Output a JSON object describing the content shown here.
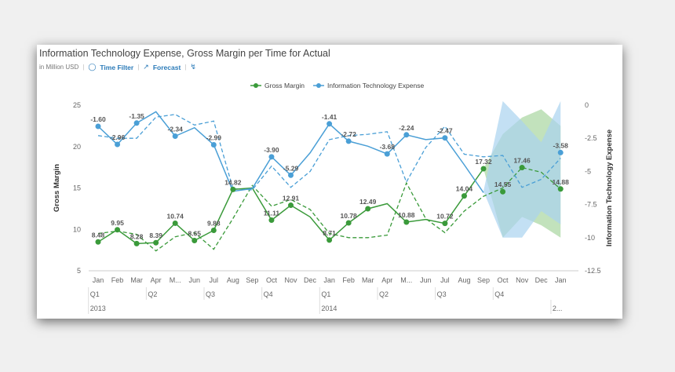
{
  "header": {
    "title": "Information Technology Expense, Gross Margin per Time for Actual",
    "unit": "in Million USD",
    "time_filter_label": "Time Filter",
    "forecast_label": "Forecast"
  },
  "colors": {
    "gross_margin": "#3a9a3a",
    "it_expense": "#4a9fd6",
    "gm_band": "#a8d6a0",
    "it_band": "#a9d3f0"
  },
  "chart_data": {
    "type": "line",
    "legend_position": "top-center",
    "categories": [
      "Jan",
      "Feb",
      "Mar",
      "Apr",
      "M...",
      "Jun",
      "Jul",
      "Aug",
      "Sep",
      "Oct",
      "Nov",
      "Dec",
      "Jan",
      "Feb",
      "Mar",
      "Apr",
      "M...",
      "Jun",
      "Jul",
      "Aug",
      "Sep",
      "Oct",
      "Nov",
      "Dec",
      "Jan"
    ],
    "quarters": [
      {
        "label": "Q1",
        "start": 0
      },
      {
        "label": "Q2",
        "start": 3
      },
      {
        "label": "Q3",
        "start": 6
      },
      {
        "label": "Q4",
        "start": 9
      },
      {
        "label": "Q1",
        "start": 12
      },
      {
        "label": "Q2",
        "start": 15
      },
      {
        "label": "Q3",
        "start": 18
      },
      {
        "label": "Q4",
        "start": 21
      }
    ],
    "years": [
      {
        "label": "2013",
        "start": 0
      },
      {
        "label": "2014",
        "start": 12
      },
      {
        "label": "2...",
        "start": 24
      }
    ],
    "left_axis": {
      "label": "Gross Margin",
      "min": 5,
      "max": 25,
      "ticks": [
        "25",
        "20",
        "15",
        "10",
        "5"
      ]
    },
    "right_axis": {
      "label": "Information Technology Expense",
      "min": -12.5,
      "max": 0,
      "ticks": [
        "0",
        "-2.5",
        "-5",
        "-7.5",
        "-10",
        "-12.5"
      ]
    },
    "series": [
      {
        "name": "Gross Margin",
        "axis": "left",
        "actual": [
          8.48,
          9.95,
          8.28,
          8.39,
          10.74,
          8.65,
          9.88,
          14.82,
          15.0,
          11.11,
          12.91,
          11.5,
          8.71,
          10.78,
          12.49,
          13.1,
          10.88,
          11.2,
          10.72,
          14.04,
          17.32,
          null,
          null,
          null,
          null
        ],
        "actual_labels": [
          "8.48",
          "9.95",
          "8.28",
          "8.39",
          "10.74",
          "8.65",
          "9.88",
          "14.82",
          "",
          "11.11",
          "12.91",
          "",
          "8.71",
          "10.78",
          "12.49",
          "",
          "10.88",
          "",
          "10.72",
          "14.04",
          "17.32",
          "",
          "",
          "",
          ""
        ],
        "comparison": [
          9.5,
          9.8,
          9.4,
          7.4,
          9.1,
          9.6,
          7.6,
          11.3,
          15.3,
          12.8,
          13.6,
          12.4,
          9.5,
          9.0,
          9.0,
          9.3,
          15.6,
          11.3,
          9.6,
          12.2,
          14.0,
          15.0,
          17.46,
          16.9,
          14.88
        ],
        "forecast": [
          null,
          null,
          null,
          null,
          null,
          null,
          null,
          null,
          null,
          null,
          null,
          null,
          null,
          null,
          null,
          null,
          null,
          null,
          null,
          null,
          17.32,
          14.55,
          17.46,
          17.2,
          14.88
        ],
        "forecast_labels": [
          "",
          "",
          "",
          "",
          "",
          "",
          "",
          "",
          "",
          "",
          "",
          "",
          "",
          "",
          "",
          "",
          "",
          "",
          "",
          "",
          "",
          "14.55",
          "17.46",
          "",
          "14.88"
        ],
        "band_upper": [
          null,
          null,
          null,
          null,
          null,
          null,
          null,
          null,
          null,
          null,
          null,
          null,
          null,
          null,
          null,
          null,
          null,
          null,
          null,
          null,
          17.32,
          21.5,
          23.5,
          24.5,
          22.5
        ],
        "band_lower": [
          null,
          null,
          null,
          null,
          null,
          null,
          null,
          null,
          null,
          null,
          null,
          null,
          null,
          null,
          null,
          null,
          null,
          null,
          null,
          null,
          17.32,
          9.0,
          11.5,
          10.5,
          9.0
        ]
      },
      {
        "name": "Information Technology Expense",
        "axis": "right",
        "actual": [
          -1.6,
          -2.96,
          -1.35,
          -0.5,
          -2.34,
          -1.7,
          -2.99,
          -6.5,
          -6.3,
          -3.9,
          -5.29,
          -3.6,
          -1.41,
          -2.72,
          -3.1,
          -3.68,
          -2.24,
          -2.6,
          -2.47,
          -4.5,
          -6.6,
          null,
          null,
          null,
          null
        ],
        "actual_labels": [
          "-1.60",
          "-2.96",
          "-1.35",
          "",
          "-2.34",
          "",
          "-2.99",
          "",
          "",
          "-3.90",
          "-5.29",
          "",
          "-1.41",
          "-2.72",
          "",
          "-3.68",
          "-2.24",
          "",
          "-2.47",
          "",
          "",
          "",
          "",
          "",
          ""
        ],
        "comparison": [
          -2.3,
          -2.5,
          -2.5,
          -0.9,
          -0.7,
          -1.5,
          -1.2,
          -6.3,
          -6.4,
          -4.6,
          -6.2,
          -5.0,
          -2.6,
          -2.3,
          -2.2,
          -2.0,
          -5.8,
          -3.2,
          -1.6,
          -3.7,
          -3.9,
          -3.8,
          -6.2,
          -5.6,
          -4.0
        ],
        "forecast": [
          null,
          null,
          null,
          null,
          null,
          null,
          null,
          null,
          null,
          null,
          null,
          null,
          null,
          null,
          null,
          null,
          null,
          null,
          null,
          null,
          -3.8,
          -3.9,
          -4.7,
          -4.4,
          -3.58
        ],
        "forecast_labels": [
          "",
          "",
          "",
          "",
          "",
          "",
          "",
          "",
          "",
          "",
          "",
          "",
          "",
          "",
          "",
          "",
          "",
          "",
          "",
          "",
          "",
          "",
          "",
          "",
          "-3.58"
        ],
        "band_upper": [
          null,
          null,
          null,
          null,
          null,
          null,
          null,
          null,
          null,
          null,
          null,
          null,
          null,
          null,
          null,
          null,
          null,
          null,
          null,
          null,
          -6.5,
          0.3,
          -1.2,
          -2.8,
          0.3
        ],
        "band_lower": [
          null,
          null,
          null,
          null,
          null,
          null,
          null,
          null,
          null,
          null,
          null,
          null,
          null,
          null,
          null,
          null,
          null,
          null,
          null,
          null,
          -6.5,
          -10.0,
          -10.0,
          -8.0,
          -9.0
        ]
      }
    ]
  }
}
